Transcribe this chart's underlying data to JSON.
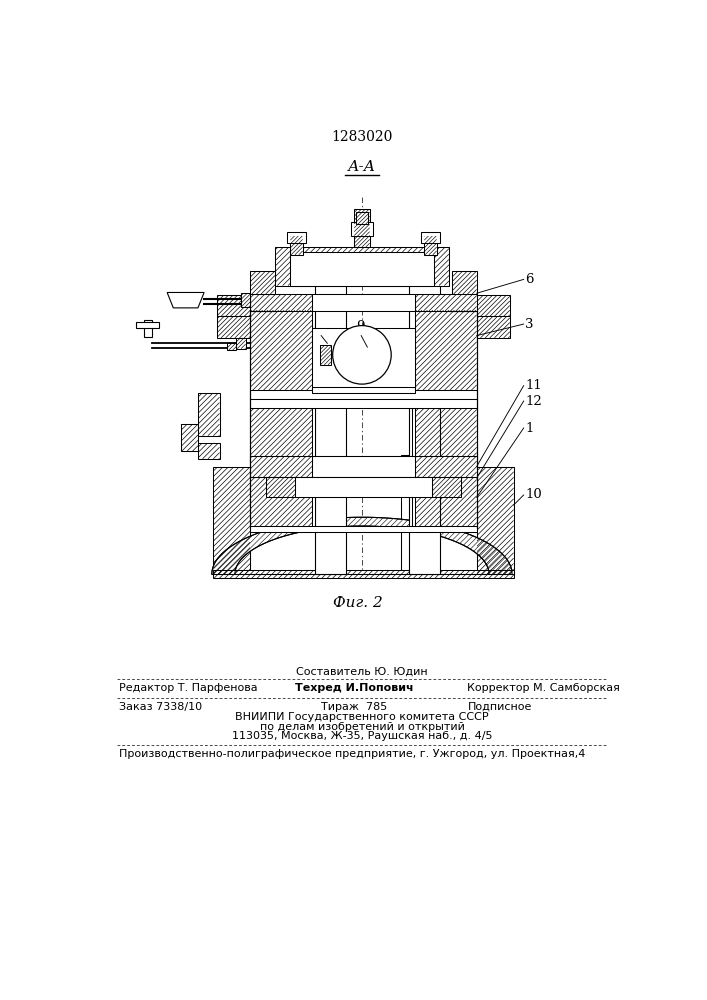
{
  "patent_number": "1283020",
  "section_label": "А-А",
  "figure_label": "Фиг. 2",
  "bg_color": "#ffffff",
  "lc": "#000000",
  "footer_sestavitel": "Составитель Ю. Юдин",
  "footer_redaktor": "Редактор Т. Парфенова",
  "footer_tekhred": "Техред И.Попович",
  "footer_korrektor": "Корректор М. Самборская",
  "footer_zakaz": "Заказ 7338/10",
  "footer_tirazh": "Тираж  785",
  "footer_podpisnoe": "Подписное",
  "footer_vniip1": "ВНИИПИ Государственного комитета СССР",
  "footer_vniip2": "по делам изобретений и открытий",
  "footer_vniip3": "113035, Москва, Ж-35, Раушская наб., д. 4/5",
  "footer_pred": "Производственно-полиграфическое предприятие, г. Ужгород, ул. Проектная,4"
}
